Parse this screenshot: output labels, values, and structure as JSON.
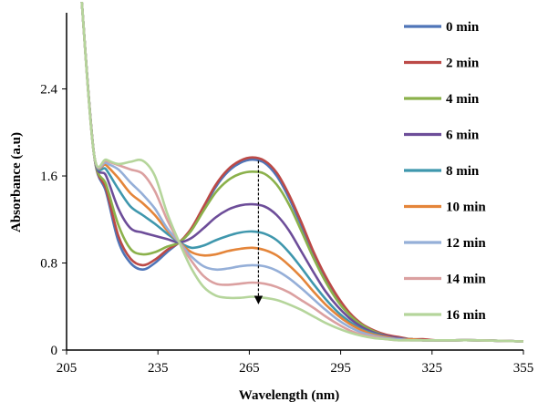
{
  "chart_data": {
    "type": "line",
    "xlabel": "Wavelength (nm)",
    "ylabel": "Absorbance  (a.u)",
    "xlim": [
      205,
      355
    ],
    "ylim": [
      0,
      3.1
    ],
    "x_ticks": [
      205,
      235,
      265,
      295,
      325,
      355
    ],
    "y_ticks": [
      0,
      0.8,
      1.6,
      2.4
    ],
    "y_tick_labels": [
      "0",
      "0.8",
      "1.6",
      "2.4"
    ],
    "legend_position": "right",
    "grid": false,
    "annotation": "dashed downward arrow at 268 nm showing decreasing absorbance over time",
    "arrow": {
      "x": 268,
      "y_start": 1.74,
      "y_end": 0.46
    },
    "x": [
      210,
      214,
      218,
      222,
      226,
      230,
      234,
      238,
      242,
      246,
      250,
      254,
      258,
      262,
      266,
      270,
      274,
      278,
      282,
      286,
      290,
      294,
      298,
      302,
      306,
      310,
      314,
      318,
      322,
      326,
      330,
      340,
      355
    ],
    "series": [
      {
        "name": "0 min",
        "color": "#4f75b8",
        "values": [
          3.2,
          1.8,
          1.45,
          1.0,
          0.8,
          0.74,
          0.8,
          0.9,
          0.99,
          1.1,
          1.3,
          1.5,
          1.64,
          1.72,
          1.75,
          1.72,
          1.6,
          1.4,
          1.15,
          0.88,
          0.65,
          0.46,
          0.32,
          0.23,
          0.17,
          0.13,
          0.11,
          0.1,
          0.09,
          0.09,
          0.09,
          0.09,
          0.08
        ]
      },
      {
        "name": "2 min",
        "color": "#bc4a47",
        "values": [
          3.2,
          1.8,
          1.48,
          1.05,
          0.84,
          0.78,
          0.83,
          0.92,
          0.99,
          1.12,
          1.32,
          1.52,
          1.66,
          1.74,
          1.77,
          1.74,
          1.63,
          1.43,
          1.18,
          0.91,
          0.68,
          0.49,
          0.34,
          0.24,
          0.18,
          0.14,
          0.12,
          0.1,
          0.1,
          0.09,
          0.09,
          0.09,
          0.08
        ]
      },
      {
        "name": "4 min",
        "color": "#8bb14b",
        "values": [
          3.2,
          1.8,
          1.52,
          1.15,
          0.93,
          0.88,
          0.9,
          0.95,
          0.99,
          1.1,
          1.28,
          1.45,
          1.56,
          1.62,
          1.64,
          1.62,
          1.52,
          1.34,
          1.1,
          0.85,
          0.63,
          0.45,
          0.32,
          0.23,
          0.17,
          0.13,
          0.11,
          0.1,
          0.09,
          0.09,
          0.09,
          0.09,
          0.08
        ]
      },
      {
        "name": "6 min",
        "color": "#6d4d99",
        "values": [
          3.2,
          1.8,
          1.6,
          1.3,
          1.12,
          1.08,
          1.05,
          1.02,
          0.99,
          1.03,
          1.12,
          1.22,
          1.29,
          1.33,
          1.34,
          1.32,
          1.24,
          1.1,
          0.91,
          0.72,
          0.54,
          0.4,
          0.29,
          0.21,
          0.16,
          0.13,
          0.11,
          0.1,
          0.09,
          0.09,
          0.09,
          0.09,
          0.08
        ]
      },
      {
        "name": "8 min",
        "color": "#3f97ad",
        "values": [
          3.2,
          1.8,
          1.66,
          1.48,
          1.32,
          1.24,
          1.16,
          1.07,
          0.99,
          0.94,
          0.96,
          1.01,
          1.05,
          1.08,
          1.09,
          1.07,
          1.01,
          0.9,
          0.76,
          0.61,
          0.47,
          0.35,
          0.26,
          0.19,
          0.15,
          0.12,
          0.1,
          0.1,
          0.09,
          0.09,
          0.09,
          0.09,
          0.08
        ]
      },
      {
        "name": "10 min",
        "color": "#e4853a",
        "values": [
          3.2,
          1.8,
          1.7,
          1.58,
          1.44,
          1.35,
          1.24,
          1.1,
          0.99,
          0.9,
          0.87,
          0.88,
          0.91,
          0.93,
          0.94,
          0.92,
          0.87,
          0.78,
          0.67,
          0.54,
          0.42,
          0.32,
          0.24,
          0.18,
          0.14,
          0.12,
          0.1,
          0.1,
          0.09,
          0.09,
          0.09,
          0.09,
          0.08
        ]
      },
      {
        "name": "12 min",
        "color": "#95afd8",
        "values": [
          3.2,
          1.8,
          1.72,
          1.66,
          1.54,
          1.43,
          1.3,
          1.12,
          0.99,
          0.86,
          0.77,
          0.74,
          0.75,
          0.77,
          0.78,
          0.77,
          0.73,
          0.66,
          0.57,
          0.47,
          0.37,
          0.28,
          0.21,
          0.16,
          0.13,
          0.11,
          0.1,
          0.09,
          0.09,
          0.09,
          0.09,
          0.09,
          0.08
        ]
      },
      {
        "name": "14 min",
        "color": "#dba0a0",
        "values": [
          3.2,
          1.8,
          1.74,
          1.7,
          1.66,
          1.62,
          1.46,
          1.2,
          0.99,
          0.82,
          0.68,
          0.61,
          0.6,
          0.61,
          0.62,
          0.61,
          0.58,
          0.53,
          0.46,
          0.39,
          0.31,
          0.24,
          0.18,
          0.14,
          0.12,
          0.1,
          0.09,
          0.09,
          0.09,
          0.09,
          0.09,
          0.09,
          0.08
        ]
      },
      {
        "name": "16 min",
        "color": "#b5d59b",
        "values": [
          3.2,
          1.8,
          1.75,
          1.71,
          1.73,
          1.74,
          1.6,
          1.26,
          0.99,
          0.75,
          0.58,
          0.5,
          0.48,
          0.48,
          0.49,
          0.48,
          0.46,
          0.42,
          0.37,
          0.31,
          0.25,
          0.2,
          0.16,
          0.13,
          0.11,
          0.1,
          0.09,
          0.09,
          0.09,
          0.09,
          0.09,
          0.09,
          0.08
        ]
      }
    ]
  }
}
